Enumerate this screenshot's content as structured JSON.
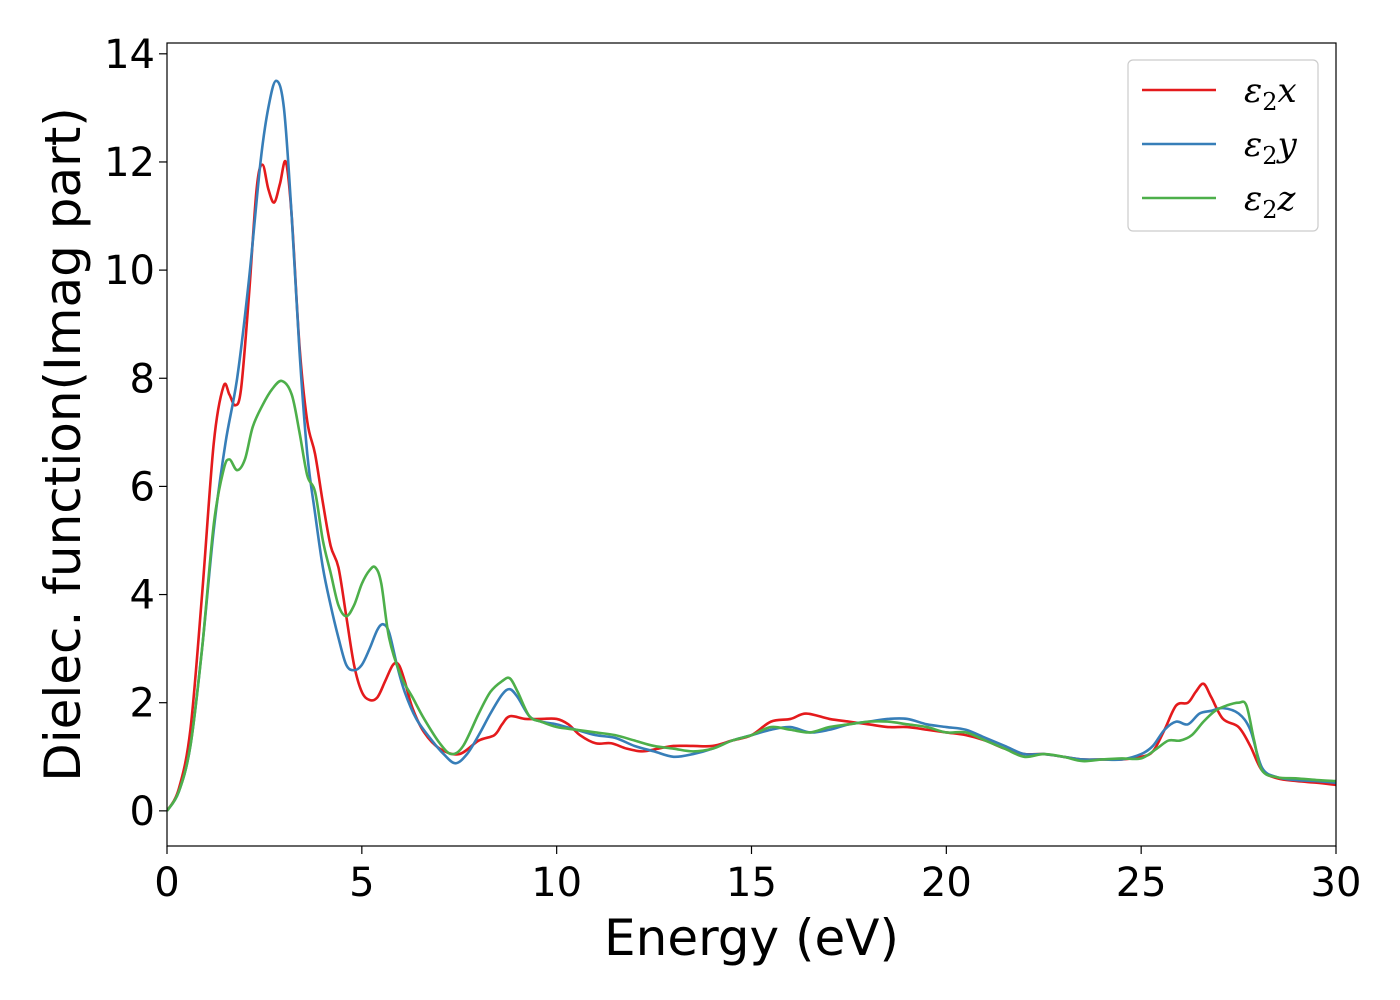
{
  "chart_data": {
    "type": "line",
    "title": "",
    "xlabel": "Energy (eV)",
    "ylabel": "Dielec. function(Imag part)",
    "xlim": [
      0,
      30
    ],
    "ylim": [
      -0.65,
      14.2
    ],
    "xticks": [
      0,
      5,
      10,
      15,
      20,
      25,
      30
    ],
    "yticks": [
      0,
      2,
      4,
      6,
      8,
      10,
      12,
      14
    ],
    "grid": false,
    "legend_position": "top-right",
    "series": [
      {
        "name": "ε₂x",
        "legend_base": "ε",
        "legend_sub": "2",
        "legend_suffix": "x",
        "color": "#e41a1c",
        "points": [
          [
            0,
            0
          ],
          [
            0.3,
            0.4
          ],
          [
            0.6,
            1.5
          ],
          [
            0.9,
            4.0
          ],
          [
            1.2,
            6.8
          ],
          [
            1.45,
            7.85
          ],
          [
            1.6,
            7.7
          ],
          [
            1.75,
            7.5
          ],
          [
            1.9,
            7.8
          ],
          [
            2.1,
            9.5
          ],
          [
            2.3,
            11.5
          ],
          [
            2.45,
            11.95
          ],
          [
            2.6,
            11.5
          ],
          [
            2.75,
            11.25
          ],
          [
            2.9,
            11.6
          ],
          [
            3.05,
            12.0
          ],
          [
            3.2,
            11.0
          ],
          [
            3.4,
            8.6
          ],
          [
            3.6,
            7.2
          ],
          [
            3.8,
            6.6
          ],
          [
            4.0,
            5.7
          ],
          [
            4.2,
            4.9
          ],
          [
            4.4,
            4.5
          ],
          [
            4.6,
            3.6
          ],
          [
            4.8,
            2.7
          ],
          [
            5.0,
            2.2
          ],
          [
            5.2,
            2.05
          ],
          [
            5.4,
            2.1
          ],
          [
            5.6,
            2.4
          ],
          [
            5.8,
            2.7
          ],
          [
            5.95,
            2.7
          ],
          [
            6.1,
            2.4
          ],
          [
            6.3,
            1.9
          ],
          [
            6.6,
            1.45
          ],
          [
            7.0,
            1.15
          ],
          [
            7.5,
            1.05
          ],
          [
            8.0,
            1.3
          ],
          [
            8.4,
            1.4
          ],
          [
            8.6,
            1.6
          ],
          [
            8.8,
            1.75
          ],
          [
            9.2,
            1.7
          ],
          [
            9.6,
            1.7
          ],
          [
            10.0,
            1.7
          ],
          [
            10.3,
            1.6
          ],
          [
            10.6,
            1.4
          ],
          [
            11.0,
            1.25
          ],
          [
            11.4,
            1.25
          ],
          [
            11.8,
            1.15
          ],
          [
            12.2,
            1.1
          ],
          [
            12.6,
            1.15
          ],
          [
            13.0,
            1.2
          ],
          [
            13.5,
            1.2
          ],
          [
            14.0,
            1.2
          ],
          [
            14.5,
            1.3
          ],
          [
            15.0,
            1.4
          ],
          [
            15.5,
            1.65
          ],
          [
            16.0,
            1.7
          ],
          [
            16.4,
            1.8
          ],
          [
            17.0,
            1.7
          ],
          [
            17.5,
            1.65
          ],
          [
            18.0,
            1.6
          ],
          [
            18.5,
            1.55
          ],
          [
            19.0,
            1.55
          ],
          [
            19.5,
            1.5
          ],
          [
            20.0,
            1.45
          ],
          [
            20.5,
            1.4
          ],
          [
            21.0,
            1.3
          ],
          [
            21.5,
            1.15
          ],
          [
            22.0,
            1.05
          ],
          [
            22.5,
            1.05
          ],
          [
            23.0,
            1.0
          ],
          [
            23.5,
            0.95
          ],
          [
            24.0,
            0.95
          ],
          [
            24.5,
            0.95
          ],
          [
            25.0,
            1.0
          ],
          [
            25.3,
            1.1
          ],
          [
            25.6,
            1.5
          ],
          [
            25.9,
            1.95
          ],
          [
            26.2,
            2.0
          ],
          [
            26.4,
            2.2
          ],
          [
            26.6,
            2.35
          ],
          [
            26.8,
            2.1
          ],
          [
            27.1,
            1.7
          ],
          [
            27.5,
            1.55
          ],
          [
            27.8,
            1.2
          ],
          [
            28.1,
            0.75
          ],
          [
            28.5,
            0.6
          ],
          [
            29.0,
            0.55
          ],
          [
            29.5,
            0.52
          ],
          [
            30.0,
            0.48
          ]
        ]
      },
      {
        "name": "ε₂y",
        "legend_base": "ε",
        "legend_sub": "2",
        "legend_suffix": "y",
        "color": "#377eb8",
        "points": [
          [
            0,
            0
          ],
          [
            0.3,
            0.35
          ],
          [
            0.6,
            1.2
          ],
          [
            0.9,
            3.0
          ],
          [
            1.2,
            5.2
          ],
          [
            1.5,
            6.8
          ],
          [
            1.8,
            8.0
          ],
          [
            2.1,
            9.8
          ],
          [
            2.4,
            12.0
          ],
          [
            2.6,
            13.0
          ],
          [
            2.8,
            13.5
          ],
          [
            3.0,
            13.0
          ],
          [
            3.2,
            11.0
          ],
          [
            3.4,
            8.5
          ],
          [
            3.6,
            6.6
          ],
          [
            3.8,
            5.5
          ],
          [
            4.0,
            4.5
          ],
          [
            4.2,
            3.8
          ],
          [
            4.4,
            3.2
          ],
          [
            4.6,
            2.7
          ],
          [
            4.8,
            2.6
          ],
          [
            5.0,
            2.7
          ],
          [
            5.2,
            3.0
          ],
          [
            5.4,
            3.35
          ],
          [
            5.55,
            3.45
          ],
          [
            5.7,
            3.3
          ],
          [
            5.9,
            2.7
          ],
          [
            6.1,
            2.2
          ],
          [
            6.4,
            1.7
          ],
          [
            6.8,
            1.3
          ],
          [
            7.1,
            1.05
          ],
          [
            7.4,
            0.88
          ],
          [
            7.7,
            1.05
          ],
          [
            8.0,
            1.4
          ],
          [
            8.3,
            1.8
          ],
          [
            8.6,
            2.15
          ],
          [
            8.8,
            2.25
          ],
          [
            9.0,
            2.1
          ],
          [
            9.3,
            1.75
          ],
          [
            9.6,
            1.65
          ],
          [
            10.0,
            1.6
          ],
          [
            10.5,
            1.5
          ],
          [
            11.0,
            1.4
          ],
          [
            11.5,
            1.35
          ],
          [
            12.0,
            1.2
          ],
          [
            12.5,
            1.1
          ],
          [
            13.0,
            1.0
          ],
          [
            13.5,
            1.05
          ],
          [
            14.0,
            1.15
          ],
          [
            14.5,
            1.3
          ],
          [
            15.0,
            1.4
          ],
          [
            15.5,
            1.5
          ],
          [
            16.0,
            1.55
          ],
          [
            16.5,
            1.45
          ],
          [
            17.0,
            1.5
          ],
          [
            17.5,
            1.6
          ],
          [
            18.0,
            1.65
          ],
          [
            18.5,
            1.7
          ],
          [
            19.0,
            1.7
          ],
          [
            19.5,
            1.6
          ],
          [
            20.0,
            1.55
          ],
          [
            20.5,
            1.5
          ],
          [
            21.0,
            1.35
          ],
          [
            21.5,
            1.2
          ],
          [
            22.0,
            1.05
          ],
          [
            22.5,
            1.05
          ],
          [
            23.0,
            1.0
          ],
          [
            23.5,
            0.95
          ],
          [
            24.0,
            0.95
          ],
          [
            24.5,
            0.95
          ],
          [
            25.0,
            1.05
          ],
          [
            25.3,
            1.2
          ],
          [
            25.6,
            1.5
          ],
          [
            25.9,
            1.65
          ],
          [
            26.2,
            1.6
          ],
          [
            26.5,
            1.8
          ],
          [
            26.8,
            1.85
          ],
          [
            27.1,
            1.9
          ],
          [
            27.5,
            1.8
          ],
          [
            27.8,
            1.5
          ],
          [
            28.1,
            0.8
          ],
          [
            28.5,
            0.62
          ],
          [
            29.0,
            0.57
          ],
          [
            29.5,
            0.55
          ],
          [
            30.0,
            0.52
          ]
        ]
      },
      {
        "name": "ε₂z",
        "legend_base": "ε",
        "legend_sub": "2",
        "legend_suffix": "z",
        "color": "#4daf4a",
        "points": [
          [
            0,
            0
          ],
          [
            0.3,
            0.35
          ],
          [
            0.6,
            1.2
          ],
          [
            0.9,
            3.0
          ],
          [
            1.2,
            5.3
          ],
          [
            1.45,
            6.3
          ],
          [
            1.6,
            6.5
          ],
          [
            1.8,
            6.3
          ],
          [
            2.0,
            6.5
          ],
          [
            2.2,
            7.1
          ],
          [
            2.45,
            7.5
          ],
          [
            2.7,
            7.8
          ],
          [
            2.95,
            7.95
          ],
          [
            3.2,
            7.7
          ],
          [
            3.4,
            7.0
          ],
          [
            3.6,
            6.2
          ],
          [
            3.8,
            5.9
          ],
          [
            4.0,
            5.0
          ],
          [
            4.2,
            4.4
          ],
          [
            4.4,
            3.8
          ],
          [
            4.6,
            3.6
          ],
          [
            4.8,
            3.8
          ],
          [
            5.0,
            4.2
          ],
          [
            5.2,
            4.45
          ],
          [
            5.35,
            4.5
          ],
          [
            5.5,
            4.2
          ],
          [
            5.7,
            3.2
          ],
          [
            6.0,
            2.5
          ],
          [
            6.3,
            2.1
          ],
          [
            6.6,
            1.7
          ],
          [
            7.0,
            1.25
          ],
          [
            7.3,
            1.05
          ],
          [
            7.6,
            1.2
          ],
          [
            8.0,
            1.8
          ],
          [
            8.3,
            2.2
          ],
          [
            8.6,
            2.4
          ],
          [
            8.8,
            2.45
          ],
          [
            9.0,
            2.2
          ],
          [
            9.3,
            1.75
          ],
          [
            9.6,
            1.65
          ],
          [
            10.0,
            1.55
          ],
          [
            10.5,
            1.5
          ],
          [
            11.0,
            1.45
          ],
          [
            11.5,
            1.4
          ],
          [
            12.0,
            1.3
          ],
          [
            12.5,
            1.2
          ],
          [
            13.0,
            1.15
          ],
          [
            13.5,
            1.1
          ],
          [
            14.0,
            1.15
          ],
          [
            14.5,
            1.3
          ],
          [
            15.0,
            1.4
          ],
          [
            15.5,
            1.55
          ],
          [
            16.0,
            1.5
          ],
          [
            16.5,
            1.45
          ],
          [
            17.0,
            1.55
          ],
          [
            17.5,
            1.6
          ],
          [
            18.0,
            1.65
          ],
          [
            18.5,
            1.65
          ],
          [
            19.0,
            1.6
          ],
          [
            19.5,
            1.55
          ],
          [
            20.0,
            1.45
          ],
          [
            20.5,
            1.45
          ],
          [
            21.0,
            1.3
          ],
          [
            21.5,
            1.15
          ],
          [
            22.0,
            1.0
          ],
          [
            22.5,
            1.05
          ],
          [
            23.0,
            1.0
          ],
          [
            23.5,
            0.92
          ],
          [
            24.0,
            0.95
          ],
          [
            24.5,
            0.97
          ],
          [
            25.0,
            0.97
          ],
          [
            25.4,
            1.15
          ],
          [
            25.7,
            1.3
          ],
          [
            26.0,
            1.3
          ],
          [
            26.3,
            1.4
          ],
          [
            26.6,
            1.65
          ],
          [
            26.9,
            1.85
          ],
          [
            27.2,
            1.95
          ],
          [
            27.5,
            2.0
          ],
          [
            27.7,
            1.95
          ],
          [
            27.9,
            1.3
          ],
          [
            28.1,
            0.75
          ],
          [
            28.5,
            0.62
          ],
          [
            29.0,
            0.6
          ],
          [
            29.5,
            0.57
          ],
          [
            30.0,
            0.55
          ]
        ]
      }
    ]
  }
}
